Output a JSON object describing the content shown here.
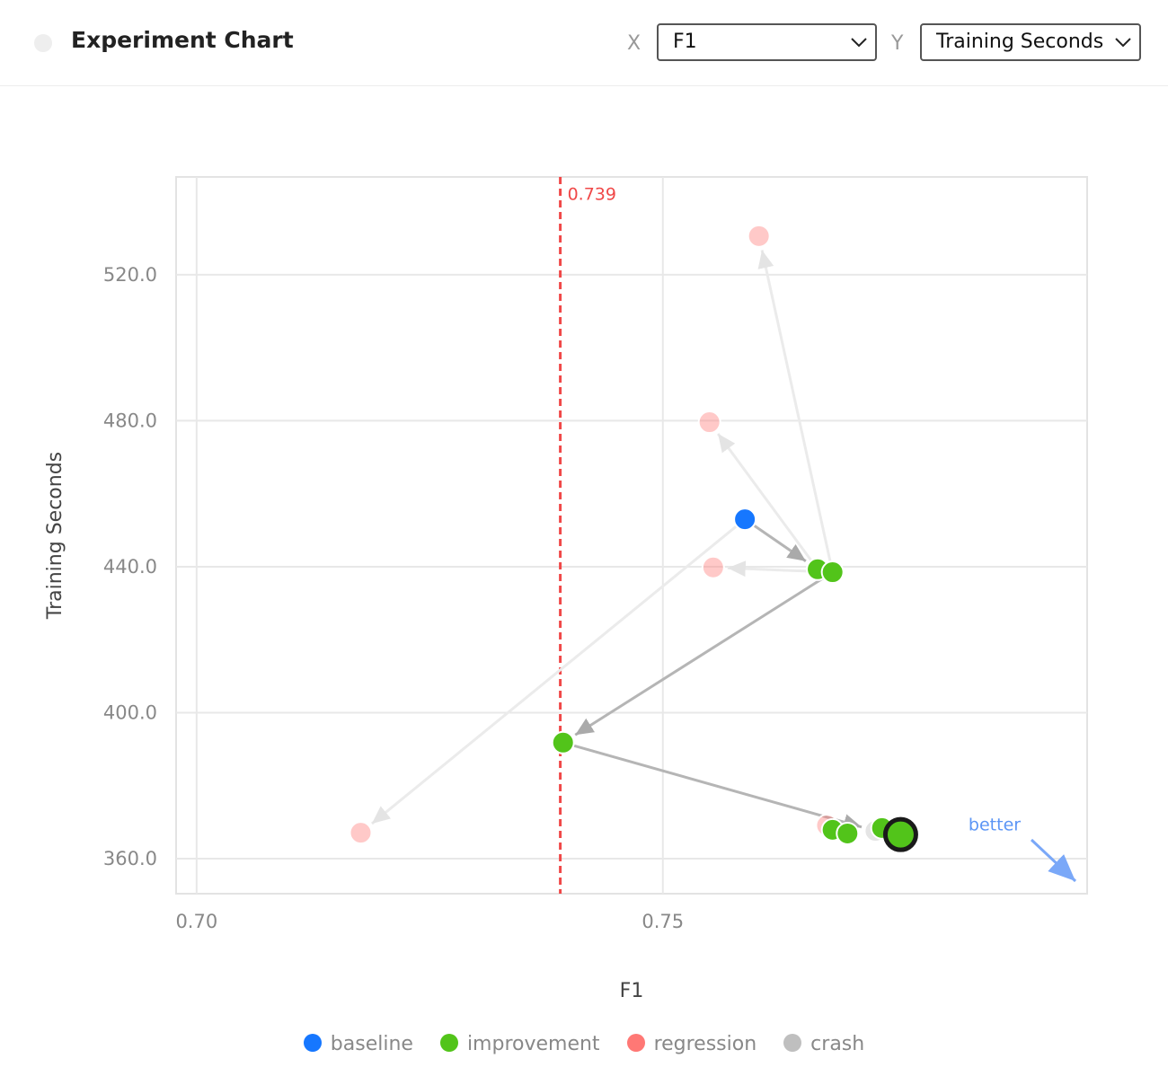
{
  "header": {
    "title": "Experiment Chart",
    "x_label": "X",
    "x_value": "F1",
    "y_label": "Y",
    "y_value": "Training Seconds"
  },
  "chart_data": {
    "type": "scatter",
    "x_label": "F1",
    "y_label": "Training Seconds",
    "xlim": [
      0.6978,
      0.7955
    ],
    "ylim": [
      350.4,
      546.8
    ],
    "xticks": [
      {
        "value": 0.7,
        "label": "0.70"
      },
      0.75
    ],
    "yticks": [
      {
        "value": 360,
        "label": "360.0"
      },
      {
        "value": 400,
        "label": "400.0"
      },
      {
        "value": 440,
        "label": "440.0"
      },
      {
        "value": 480,
        "label": "480.0"
      },
      {
        "value": 520,
        "label": "520.0"
      }
    ],
    "grid": true,
    "threshold": 0.739,
    "annotation": "better",
    "series": [
      {
        "name": "baseline",
        "color": "#1677ff",
        "x": [
          0.7588
        ],
        "values": [
          453.0
        ]
      },
      {
        "name": "improvement",
        "color": "#52c41a",
        "x": [
          0.7666,
          0.7682,
          0.7393,
          0.7682,
          0.7698,
          0.7735,
          0.7755
        ],
        "values": [
          439.3,
          438.5,
          391.8,
          367.9,
          366.9,
          368.4,
          366.6
        ]
      },
      {
        "name": "regression",
        "color": "#ff7875",
        "x": [
          0.7603,
          0.755,
          0.7554,
          0.7176,
          0.7676
        ],
        "values": [
          530.6,
          479.6,
          439.8,
          367.1,
          369.1
        ]
      },
      {
        "name": "crash",
        "color": "#bfbfbf",
        "x": [
          0.7728
        ],
        "values": [
          367.6
        ]
      }
    ]
  }
}
